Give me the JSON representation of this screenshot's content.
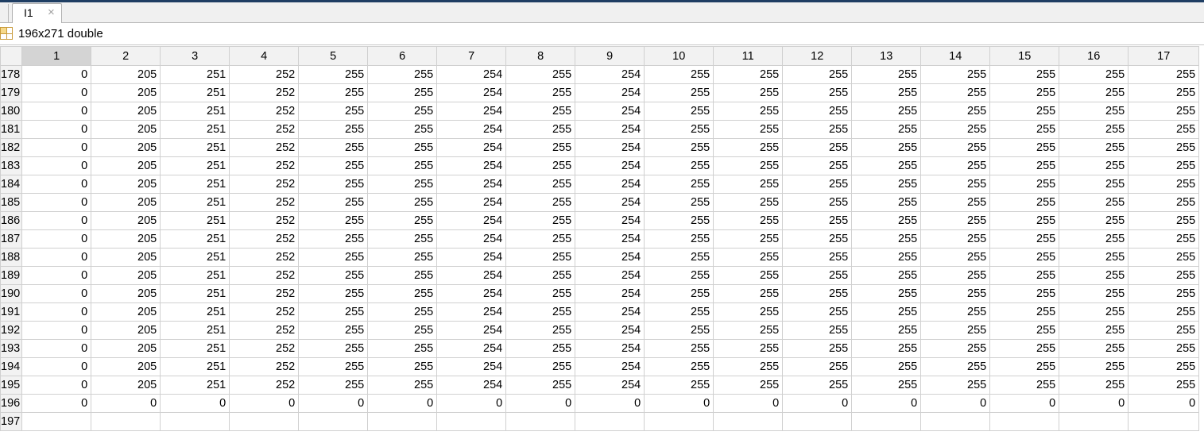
{
  "tab": {
    "label": "I1",
    "close_glyph": "×"
  },
  "info": {
    "text": "196x271 double",
    "icon": "grid-icon"
  },
  "columns": [
    "1",
    "2",
    "3",
    "4",
    "5",
    "6",
    "7",
    "8",
    "9",
    "10",
    "11",
    "12",
    "13",
    "14",
    "15",
    "16",
    "17"
  ],
  "selected_column": "1",
  "rows": [
    {
      "label": "178",
      "cells": [
        "0",
        "205",
        "251",
        "252",
        "255",
        "255",
        "254",
        "255",
        "254",
        "255",
        "255",
        "255",
        "255",
        "255",
        "255",
        "255",
        "255"
      ]
    },
    {
      "label": "179",
      "cells": [
        "0",
        "205",
        "251",
        "252",
        "255",
        "255",
        "254",
        "255",
        "254",
        "255",
        "255",
        "255",
        "255",
        "255",
        "255",
        "255",
        "255"
      ]
    },
    {
      "label": "180",
      "cells": [
        "0",
        "205",
        "251",
        "252",
        "255",
        "255",
        "254",
        "255",
        "254",
        "255",
        "255",
        "255",
        "255",
        "255",
        "255",
        "255",
        "255"
      ]
    },
    {
      "label": "181",
      "cells": [
        "0",
        "205",
        "251",
        "252",
        "255",
        "255",
        "254",
        "255",
        "254",
        "255",
        "255",
        "255",
        "255",
        "255",
        "255",
        "255",
        "255"
      ]
    },
    {
      "label": "182",
      "cells": [
        "0",
        "205",
        "251",
        "252",
        "255",
        "255",
        "254",
        "255",
        "254",
        "255",
        "255",
        "255",
        "255",
        "255",
        "255",
        "255",
        "255"
      ]
    },
    {
      "label": "183",
      "cells": [
        "0",
        "205",
        "251",
        "252",
        "255",
        "255",
        "254",
        "255",
        "254",
        "255",
        "255",
        "255",
        "255",
        "255",
        "255",
        "255",
        "255"
      ]
    },
    {
      "label": "184",
      "cells": [
        "0",
        "205",
        "251",
        "252",
        "255",
        "255",
        "254",
        "255",
        "254",
        "255",
        "255",
        "255",
        "255",
        "255",
        "255",
        "255",
        "255"
      ]
    },
    {
      "label": "185",
      "cells": [
        "0",
        "205",
        "251",
        "252",
        "255",
        "255",
        "254",
        "255",
        "254",
        "255",
        "255",
        "255",
        "255",
        "255",
        "255",
        "255",
        "255"
      ]
    },
    {
      "label": "186",
      "cells": [
        "0",
        "205",
        "251",
        "252",
        "255",
        "255",
        "254",
        "255",
        "254",
        "255",
        "255",
        "255",
        "255",
        "255",
        "255",
        "255",
        "255"
      ]
    },
    {
      "label": "187",
      "cells": [
        "0",
        "205",
        "251",
        "252",
        "255",
        "255",
        "254",
        "255",
        "254",
        "255",
        "255",
        "255",
        "255",
        "255",
        "255",
        "255",
        "255"
      ]
    },
    {
      "label": "188",
      "cells": [
        "0",
        "205",
        "251",
        "252",
        "255",
        "255",
        "254",
        "255",
        "254",
        "255",
        "255",
        "255",
        "255",
        "255",
        "255",
        "255",
        "255"
      ]
    },
    {
      "label": "189",
      "cells": [
        "0",
        "205",
        "251",
        "252",
        "255",
        "255",
        "254",
        "255",
        "254",
        "255",
        "255",
        "255",
        "255",
        "255",
        "255",
        "255",
        "255"
      ]
    },
    {
      "label": "190",
      "cells": [
        "0",
        "205",
        "251",
        "252",
        "255",
        "255",
        "254",
        "255",
        "254",
        "255",
        "255",
        "255",
        "255",
        "255",
        "255",
        "255",
        "255"
      ]
    },
    {
      "label": "191",
      "cells": [
        "0",
        "205",
        "251",
        "252",
        "255",
        "255",
        "254",
        "255",
        "254",
        "255",
        "255",
        "255",
        "255",
        "255",
        "255",
        "255",
        "255"
      ]
    },
    {
      "label": "192",
      "cells": [
        "0",
        "205",
        "251",
        "252",
        "255",
        "255",
        "254",
        "255",
        "254",
        "255",
        "255",
        "255",
        "255",
        "255",
        "255",
        "255",
        "255"
      ]
    },
    {
      "label": "193",
      "cells": [
        "0",
        "205",
        "251",
        "252",
        "255",
        "255",
        "254",
        "255",
        "254",
        "255",
        "255",
        "255",
        "255",
        "255",
        "255",
        "255",
        "255"
      ]
    },
    {
      "label": "194",
      "cells": [
        "0",
        "205",
        "251",
        "252",
        "255",
        "255",
        "254",
        "255",
        "254",
        "255",
        "255",
        "255",
        "255",
        "255",
        "255",
        "255",
        "255"
      ]
    },
    {
      "label": "195",
      "cells": [
        "0",
        "205",
        "251",
        "252",
        "255",
        "255",
        "254",
        "255",
        "254",
        "255",
        "255",
        "255",
        "255",
        "255",
        "255",
        "255",
        "255"
      ]
    },
    {
      "label": "196",
      "cells": [
        "0",
        "0",
        "0",
        "0",
        "0",
        "0",
        "0",
        "0",
        "0",
        "0",
        "0",
        "0",
        "0",
        "0",
        "0",
        "0",
        "0"
      ]
    },
    {
      "label": "197",
      "cells": [
        "",
        "",
        "",
        "",
        "",
        "",
        "",
        "",
        "",
        "",
        "",
        "",
        "",
        "",
        "",
        "",
        ""
      ]
    }
  ]
}
